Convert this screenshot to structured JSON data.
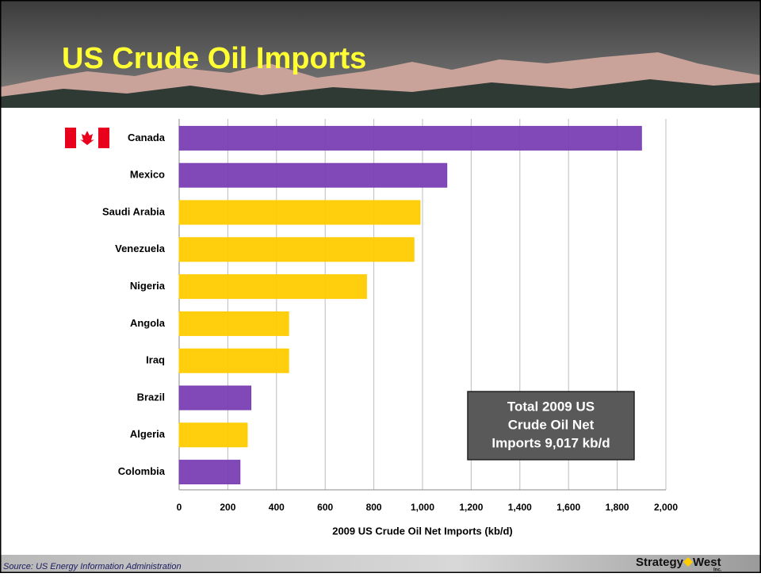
{
  "title": "US Crude Oil Imports",
  "chart_data": {
    "type": "hbar",
    "categories": [
      "Canada",
      "Mexico",
      "Saudi Arabia",
      "Venezuela",
      "Nigeria",
      "Angola",
      "Iraq",
      "Brazil",
      "Algeria",
      "Colombia"
    ],
    "values": [
      1900,
      1100,
      990,
      965,
      770,
      450,
      450,
      295,
      280,
      250
    ],
    "colors": [
      "#7a3fb3",
      "#7a3fb3",
      "#ffcc00",
      "#ffcc00",
      "#ffcc00",
      "#ffcc00",
      "#ffcc00",
      "#7a3fb3",
      "#ffcc00",
      "#7a3fb3"
    ],
    "xlim": [
      0,
      2000
    ],
    "xticks": [
      0,
      200,
      400,
      600,
      800,
      {
        "value": 1000,
        "label": "1,000"
      },
      {
        "value": 1200,
        "label": "1,200"
      },
      {
        "value": 1400,
        "label": "1,400"
      },
      {
        "value": 1600,
        "label": "1,600"
      },
      {
        "value": 1800,
        "label": "1,800"
      },
      {
        "value": 2000,
        "label": "2,000"
      }
    ],
    "xlabel": "2009 US Crude Oil Net Imports (kb/d)",
    "grid": true,
    "annotation": [
      "Total 2009 US",
      "Crude Oil Net",
      "Imports 9,017 kb/d"
    ]
  },
  "source": "Source: US Energy Information Administration",
  "logo": {
    "left": "Strategy",
    "right": "West",
    "sub": "Inc."
  }
}
